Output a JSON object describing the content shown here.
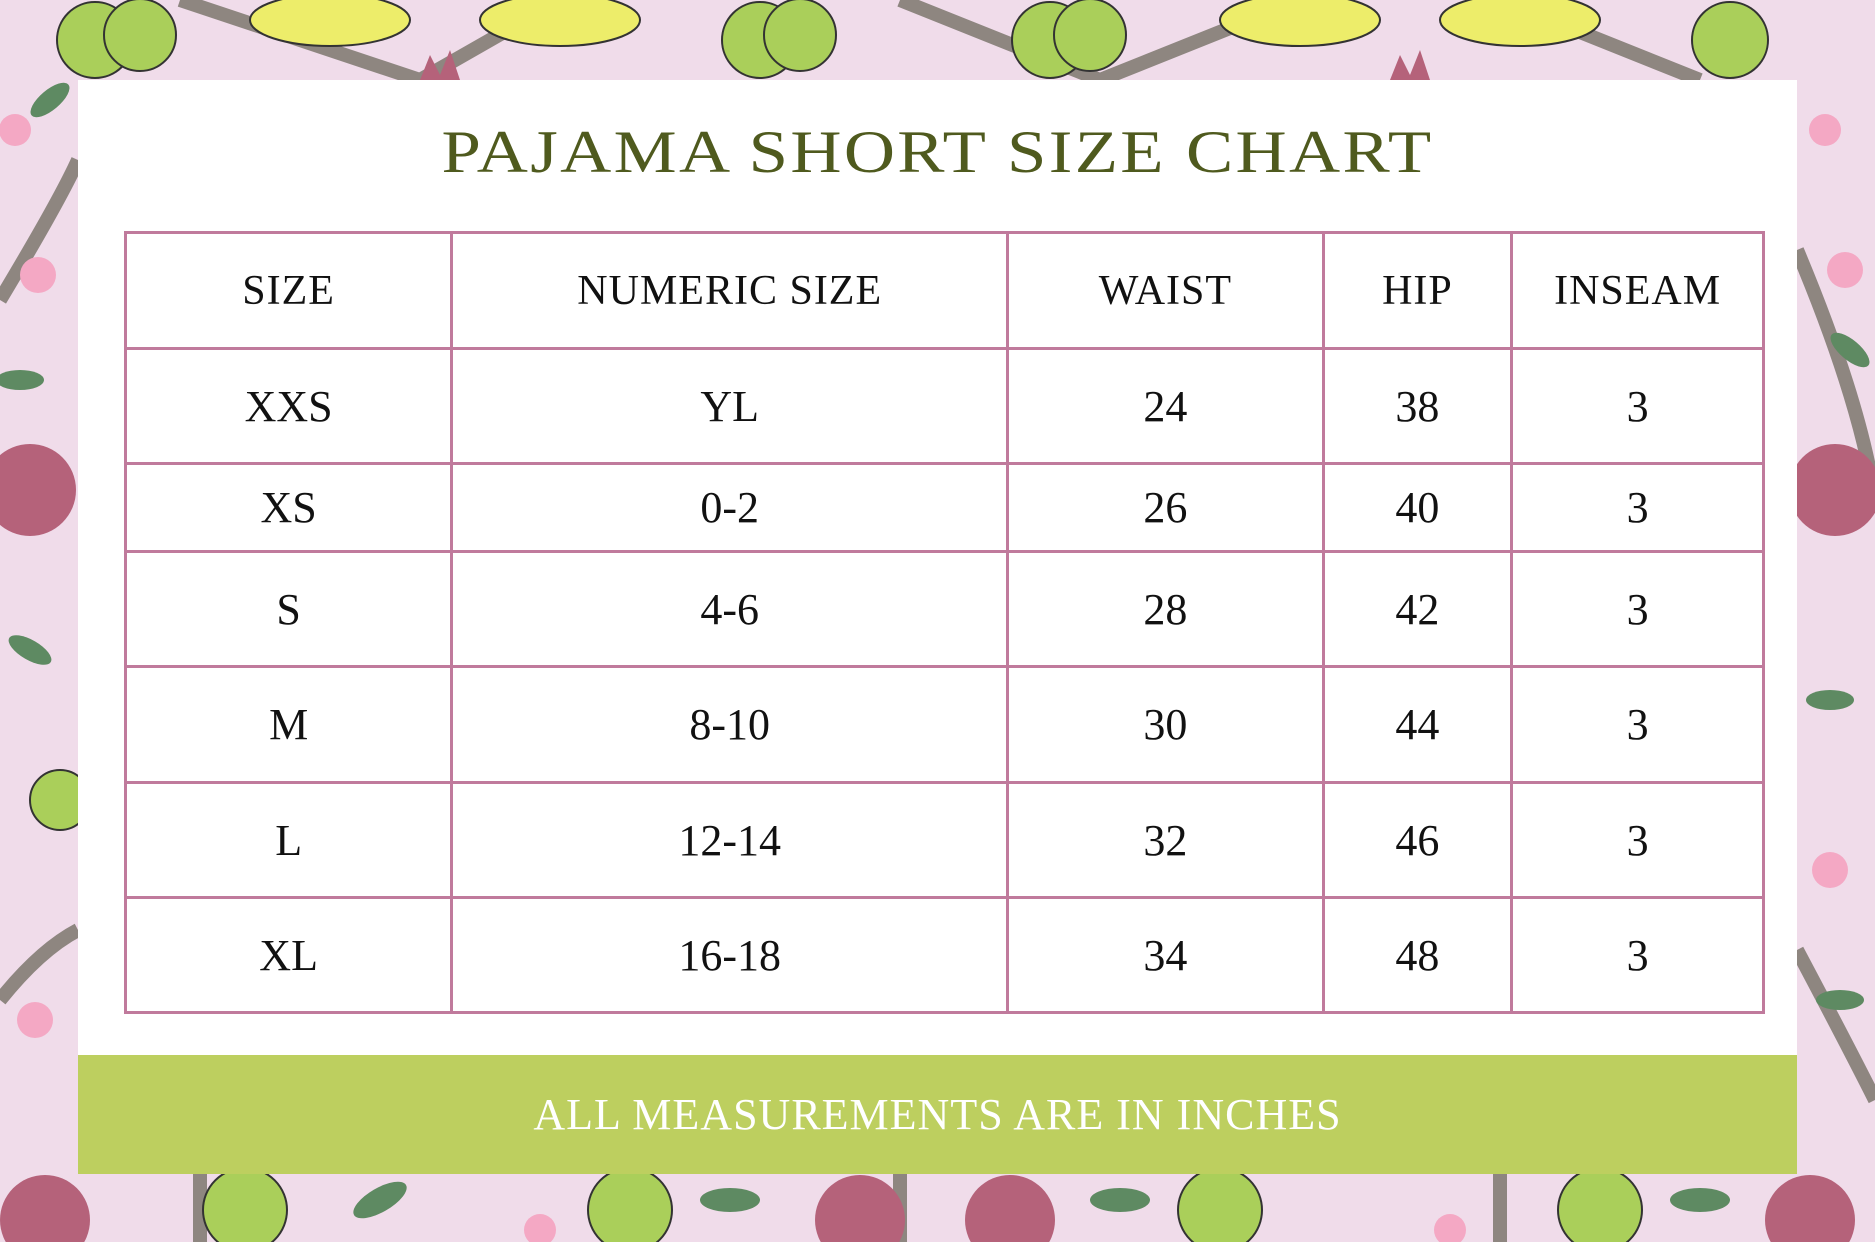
{
  "title": "PAJAMA SHORT SIZE CHART",
  "table": {
    "headers": [
      "SIZE",
      "NUMERIC SIZE",
      "WAIST",
      "HIP",
      "INSEAM"
    ],
    "rows": [
      [
        "XXS",
        "YL",
        "24",
        "38",
        "3"
      ],
      [
        "XS",
        "0-2",
        "26",
        "40",
        "3"
      ],
      [
        "S",
        "4-6",
        "28",
        "42",
        "3"
      ],
      [
        "M",
        "8-10",
        "30",
        "44",
        "3"
      ],
      [
        "L",
        "12-14",
        "32",
        "46",
        "3"
      ],
      [
        "XL",
        "16-18",
        "34",
        "48",
        "3"
      ]
    ]
  },
  "footer": "ALL MEASUREMENTS ARE IN INCHES",
  "colors": {
    "title": "#4f5a1e",
    "border": "#c07a9c",
    "footer_bg": "#bdcf5f",
    "background": "#f0dcea"
  }
}
